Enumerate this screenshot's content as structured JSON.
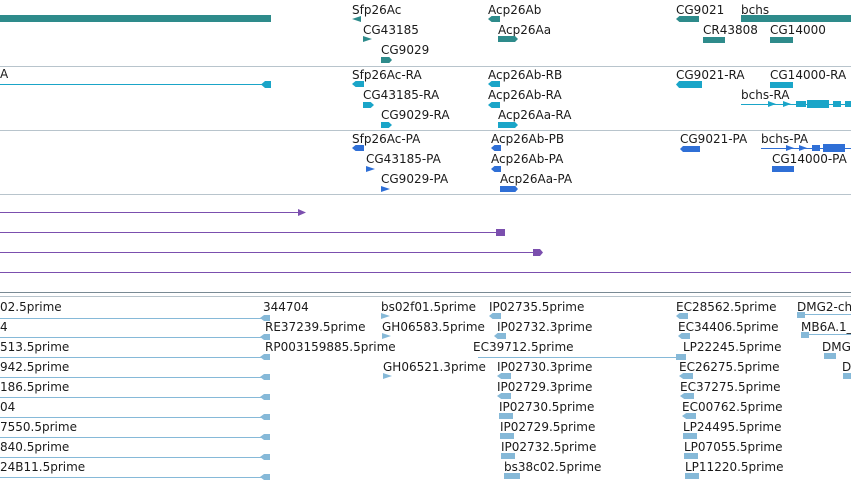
{
  "colors": {
    "gene": "#2e8b8b",
    "transcript": "#1aa5c8",
    "protein": "#2f6fd6",
    "line_track": "#7b4fae",
    "est": "#86b9d8"
  },
  "gene_track": {
    "labels": [
      "Sfp26Ac",
      "CG43185",
      "CG9029",
      "Acp26Ab",
      "Acp26Aa",
      "CG9021",
      "CR43808",
      "bchs",
      "CG14000"
    ]
  },
  "transcript_track": {
    "labels": [
      "A",
      "Sfp26Ac-RA",
      "CG43185-RA",
      "CG9029-RA",
      "Acp26Ab-RB",
      "Acp26Ab-RA",
      "Acp26Aa-RA",
      "CG9021-RA",
      "CG14000-RA",
      "bchs-RA"
    ]
  },
  "protein_track": {
    "labels": [
      "Sfp26Ac-PA",
      "CG43185-PA",
      "CG9029-PA",
      "Acp26Ab-PB",
      "Acp26Ab-PA",
      "Acp26Aa-PA",
      "CG9021-PA",
      "bchs-PA",
      "CG14000-PA"
    ]
  },
  "est_track": {
    "labels": [
      "02.5prime",
      "344704",
      "bs02f01.5prime",
      "IP02735.5prime",
      "EC28562.5prime",
      "DMG2-ch",
      "4",
      "RE37239.5prime",
      "GH06583.5prime",
      "IP02732.3prime",
      "EC34406.5prime",
      "MB6A.1_",
      "513.5prime",
      "RP003159885.5prime",
      "EC39712.5prime",
      "LP22245.5prime",
      "DMG",
      "942.5prime",
      "GH06521.3prime",
      "IP02730.3prime",
      "EC26275.5prime",
      "D",
      "186.5prime",
      "IP02729.3prime",
      "EC37275.5prime",
      "04",
      "IP02730.5prime",
      "EC00762.5prime",
      "7550.5prime",
      "IP02729.5prime",
      "LP24495.5prime",
      "840.5prime",
      "IP02732.5prime",
      "LP07055.5prime",
      "24B11.5prime",
      "bs38c02.5prime",
      "LP11220.5prime"
    ]
  }
}
